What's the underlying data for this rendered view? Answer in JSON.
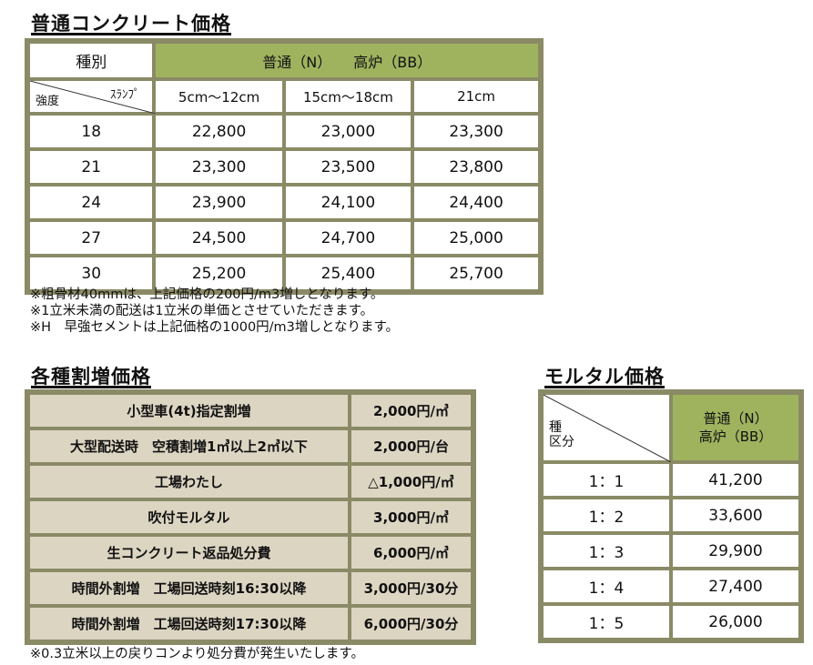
{
  "concrete": {
    "title": "普通コンクリート価格",
    "header_kind": "種別",
    "header_type": "普通（N）　　高炉（BB）",
    "header_slump": "ｽﾗﾝﾌﾟ",
    "header_strength": "強度",
    "columns": [
      "5cm～12cm",
      "15cm～18cm",
      "21cm"
    ],
    "rows": [
      {
        "strength": "18",
        "values": [
          "22,800",
          "23,000",
          "23,300"
        ]
      },
      {
        "strength": "21",
        "values": [
          "23,300",
          "23,500",
          "23,800"
        ]
      },
      {
        "strength": "24",
        "values": [
          "23,900",
          "24,100",
          "24,400"
        ]
      },
      {
        "strength": "27",
        "values": [
          "24,500",
          "24,700",
          "25,000"
        ]
      },
      {
        "strength": "30",
        "values": [
          "25,200",
          "25,400",
          "25,700"
        ]
      }
    ],
    "notes": [
      "※粗骨材40mmは、上記価格の200円/m3増しとなります。",
      "※1立米未満の配送は1立米の単価とさせていただきます。",
      "※H　早強セメントは上記価格の1000円/m3増しとなります。"
    ]
  },
  "surcharge": {
    "title": "各種割増価格",
    "rows": [
      {
        "label": "小型車(4t)指定割増",
        "price": "2,000円/㎥"
      },
      {
        "label": "大型配送時　空積割増1㎥以上2㎥以下",
        "price": "2,000円/台"
      },
      {
        "label": "工場わたし",
        "price": "△1,000円/㎥"
      },
      {
        "label": "吹付モルタル",
        "price": "3,000円/㎥"
      },
      {
        "label": "生コンクリート返品処分費",
        "price": "6,000円/㎥"
      },
      {
        "label": "時間外割増　工場回送時刻16:30以降",
        "price": "3,000円/30分"
      },
      {
        "label": "時間外割増　工場回送時刻17:30以降",
        "price": "6,000円/30分"
      }
    ],
    "note": "※0.3立米以上の戻りコンより処分費が発生いたします。"
  },
  "mortar": {
    "title": "モルタル価格",
    "header_kind_line1": "種",
    "header_kind_line2": "区分",
    "header_type_line1": "普通（N）",
    "header_type_line2": "高炉（BB）",
    "rows": [
      {
        "ratio": "1：1",
        "price": "41,200"
      },
      {
        "ratio": "1：2",
        "price": "33,600"
      },
      {
        "ratio": "1：3",
        "price": "29,900"
      },
      {
        "ratio": "1：4",
        "price": "27,400"
      },
      {
        "ratio": "1：5",
        "price": "26,000"
      }
    ]
  },
  "colors": {
    "header_green": "#9fb35f",
    "row_beige": "#dcd5c2",
    "border": "#8a8a66"
  }
}
